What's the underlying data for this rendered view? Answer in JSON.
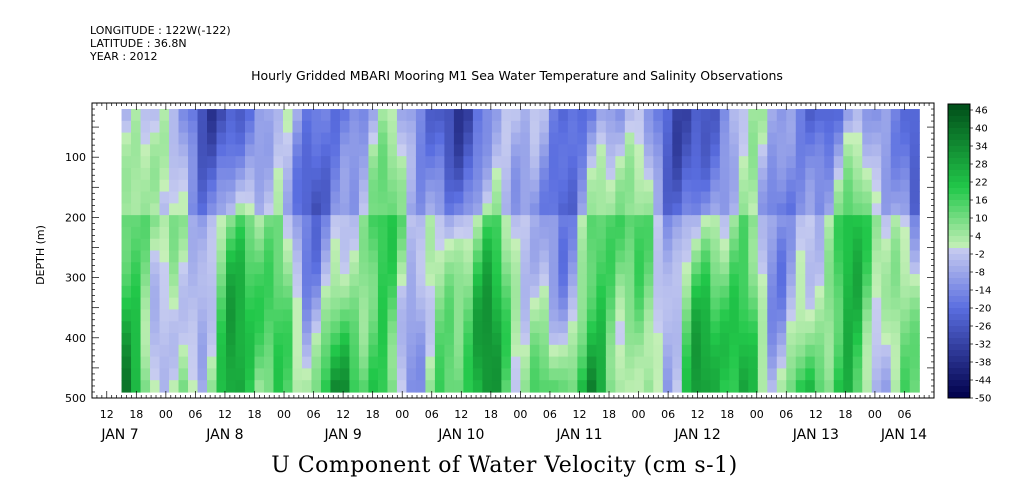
{
  "header": {
    "longitude": "LONGITUDE : 122W(-122)",
    "latitude": "LATITUDE : 36.8N",
    "year": "YEAR : 2012"
  },
  "chart_data": {
    "type": "heatmap",
    "title": "Hourly Gridded MBARI Mooring M1 Sea Water Temperature and Salinity Observations",
    "variable_label": "U Component of Water Velocity (cm s-1)",
    "ylabel": "DEPTH (m)",
    "y_inverted": true,
    "ylim": [
      500,
      10
    ],
    "y_ticks": [
      100,
      200,
      300,
      400,
      500
    ],
    "data_depth_range": [
      20,
      490
    ],
    "x_start": "2012-01-07 09:00",
    "x_end": "2012-01-14 12:00",
    "data_time_range": [
      "2012-01-07 15:00",
      "2012-01-14 09:00"
    ],
    "x_hour_ticks": [
      "12",
      "18",
      "00",
      "06",
      "12",
      "18",
      "00",
      "06",
      "12",
      "18",
      "00",
      "06",
      "12",
      "18",
      "00",
      "06",
      "12",
      "18",
      "00",
      "06",
      "12",
      "18",
      "00",
      "06",
      "12",
      "18",
      "00",
      "06"
    ],
    "x_day_labels": [
      "JAN  7",
      "JAN  8",
      "JAN  9",
      "JAN 10",
      "JAN 11",
      "JAN 12",
      "JAN 13",
      "JAN 14"
    ],
    "colorbar": {
      "levels": [
        48,
        46,
        44,
        42,
        40,
        38,
        36,
        34,
        32,
        30,
        28,
        26,
        24,
        22,
        20,
        18,
        16,
        14,
        12,
        10,
        8,
        6,
        4,
        2,
        0,
        -2,
        -4,
        -6,
        -8,
        -10,
        -12,
        -14,
        -16,
        -18,
        -20,
        -22,
        -24,
        -26,
        -28,
        -30,
        -32,
        -34,
        -36,
        -38,
        -40,
        -42,
        -44,
        -46,
        -48,
        -50
      ],
      "labels": [
        "46",
        "40",
        "34",
        "28",
        "22",
        "16",
        "10",
        "4",
        "-2",
        "-8",
        "-14",
        "-20",
        "-26",
        "-32",
        "-38",
        "-44",
        "-50"
      ],
      "high_color": "#004d19",
      "mid_high_color": "#22c84a",
      "near_zero_high": "#c6f0b8",
      "near_zero_low": "#c8cdf0",
      "mid_low_color": "#5a6ee0",
      "low_color": "#00004a"
    },
    "series": [
      {
        "depth_band": "20-150 m",
        "character": "mostly negative (blue), patches of positive near JAN 7 18h, JAN 8 12h, JAN 12 18h"
      },
      {
        "depth_band": "150-300 m",
        "character": "alternating bands; negative dominant JAN 9-10, JAN 11 06h"
      },
      {
        "depth_band": "300-490 m",
        "character": "mostly positive (green), strongest near JAN 8 06h, JAN 10 12h, JAN 11 00h, JAN 12 18h"
      }
    ]
  }
}
